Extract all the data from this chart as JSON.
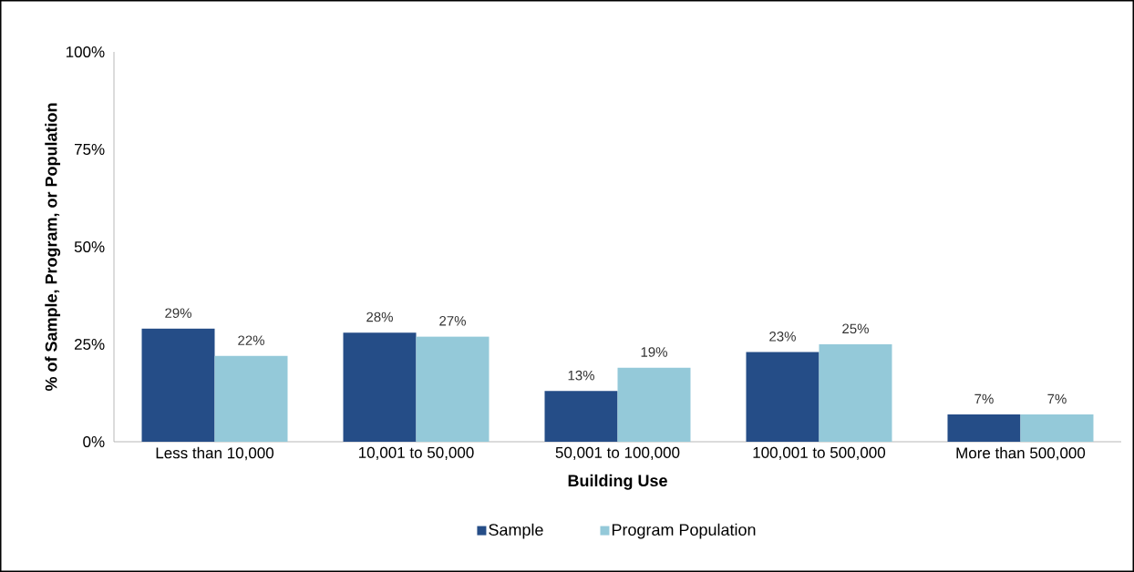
{
  "chart_data": {
    "type": "bar",
    "xlabel": "Building Use",
    "ylabel": "% of Sample, Program, or Population",
    "categories": [
      "Less than 10,000",
      "10,001 to 50,000",
      "50,001 to 100,000",
      "100,001 to 500,000",
      "More than 500,000"
    ],
    "series": [
      {
        "name": "Sample",
        "color": "#254d87",
        "values": [
          29,
          28,
          13,
          23,
          7
        ],
        "value_labels": [
          "29%",
          "28%",
          "13%",
          "23%",
          "7%"
        ]
      },
      {
        "name": "Program Population",
        "color": "#94c9d9",
        "values": [
          22,
          27,
          19,
          25,
          7
        ],
        "value_labels": [
          "22%",
          "27%",
          "19%",
          "25%",
          "7%"
        ]
      }
    ],
    "ylim": [
      0,
      100
    ],
    "yticks": [
      {
        "value": 0,
        "label": "0%"
      },
      {
        "value": 25,
        "label": "25%"
      },
      {
        "value": 50,
        "label": "50%"
      },
      {
        "value": 75,
        "label": "75%"
      },
      {
        "value": 100,
        "label": "100%"
      }
    ],
    "grid": false,
    "legend": "bottom"
  }
}
